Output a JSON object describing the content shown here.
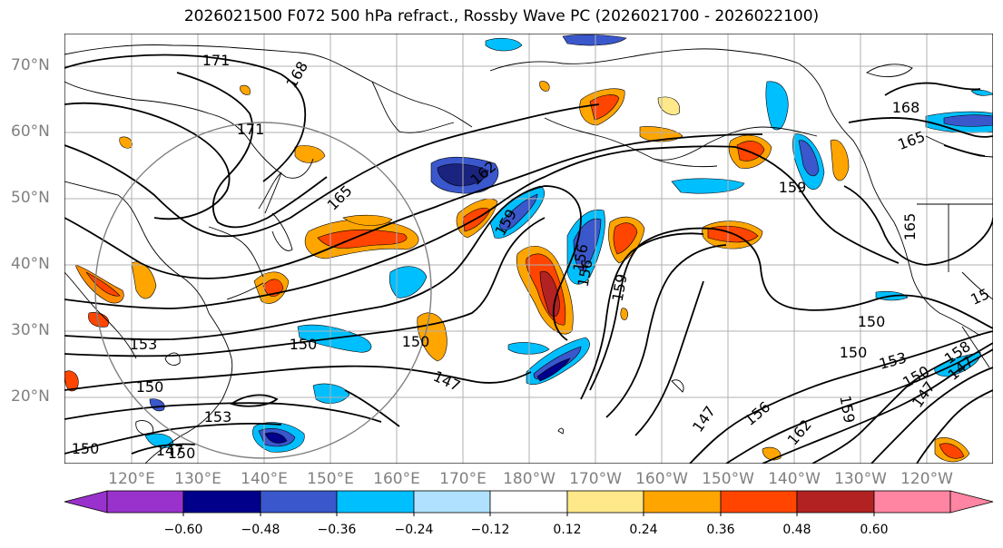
{
  "title": "2026021500 F072 500 hPa refract., Rossby Wave PC (2026021700 - 2026022100)",
  "lat_labels": [
    "70°N",
    "60°N",
    "50°N",
    "40°N",
    "30°N",
    "20°N"
  ],
  "lon_labels": [
    "120°E",
    "130°E",
    "140°E",
    "150°E",
    "160°E",
    "170°E",
    "180°W",
    "170°W",
    "160°W",
    "150°W",
    "140°W",
    "130°W",
    "120°W"
  ],
  "colorbar": {
    "ticks": [
      "−0.60",
      "−0.48",
      "−0.36",
      "−0.24",
      "−0.12",
      "0.12",
      "0.24",
      "0.36",
      "0.48",
      "0.60"
    ],
    "colors": [
      "#9932cc",
      "#00008b",
      "#3a57cc",
      "#00bfff",
      "#b0e2ff",
      "#ffffff",
      "#ffe88a",
      "#ffa500",
      "#ff4500",
      "#b22222",
      "#ff85a2"
    ]
  },
  "contour_labels": [
    "171",
    "168",
    "171",
    "165",
    "162",
    "159",
    "156",
    "159",
    "153",
    "150",
    "147",
    "150",
    "153",
    "150",
    "147",
    "150",
    "147",
    "156",
    "162",
    "159",
    "150",
    "153",
    "150",
    "147",
    "158",
    "168",
    "165",
    "159",
    "165",
    "15",
    "147",
    "150",
    "150",
    "156"
  ]
}
